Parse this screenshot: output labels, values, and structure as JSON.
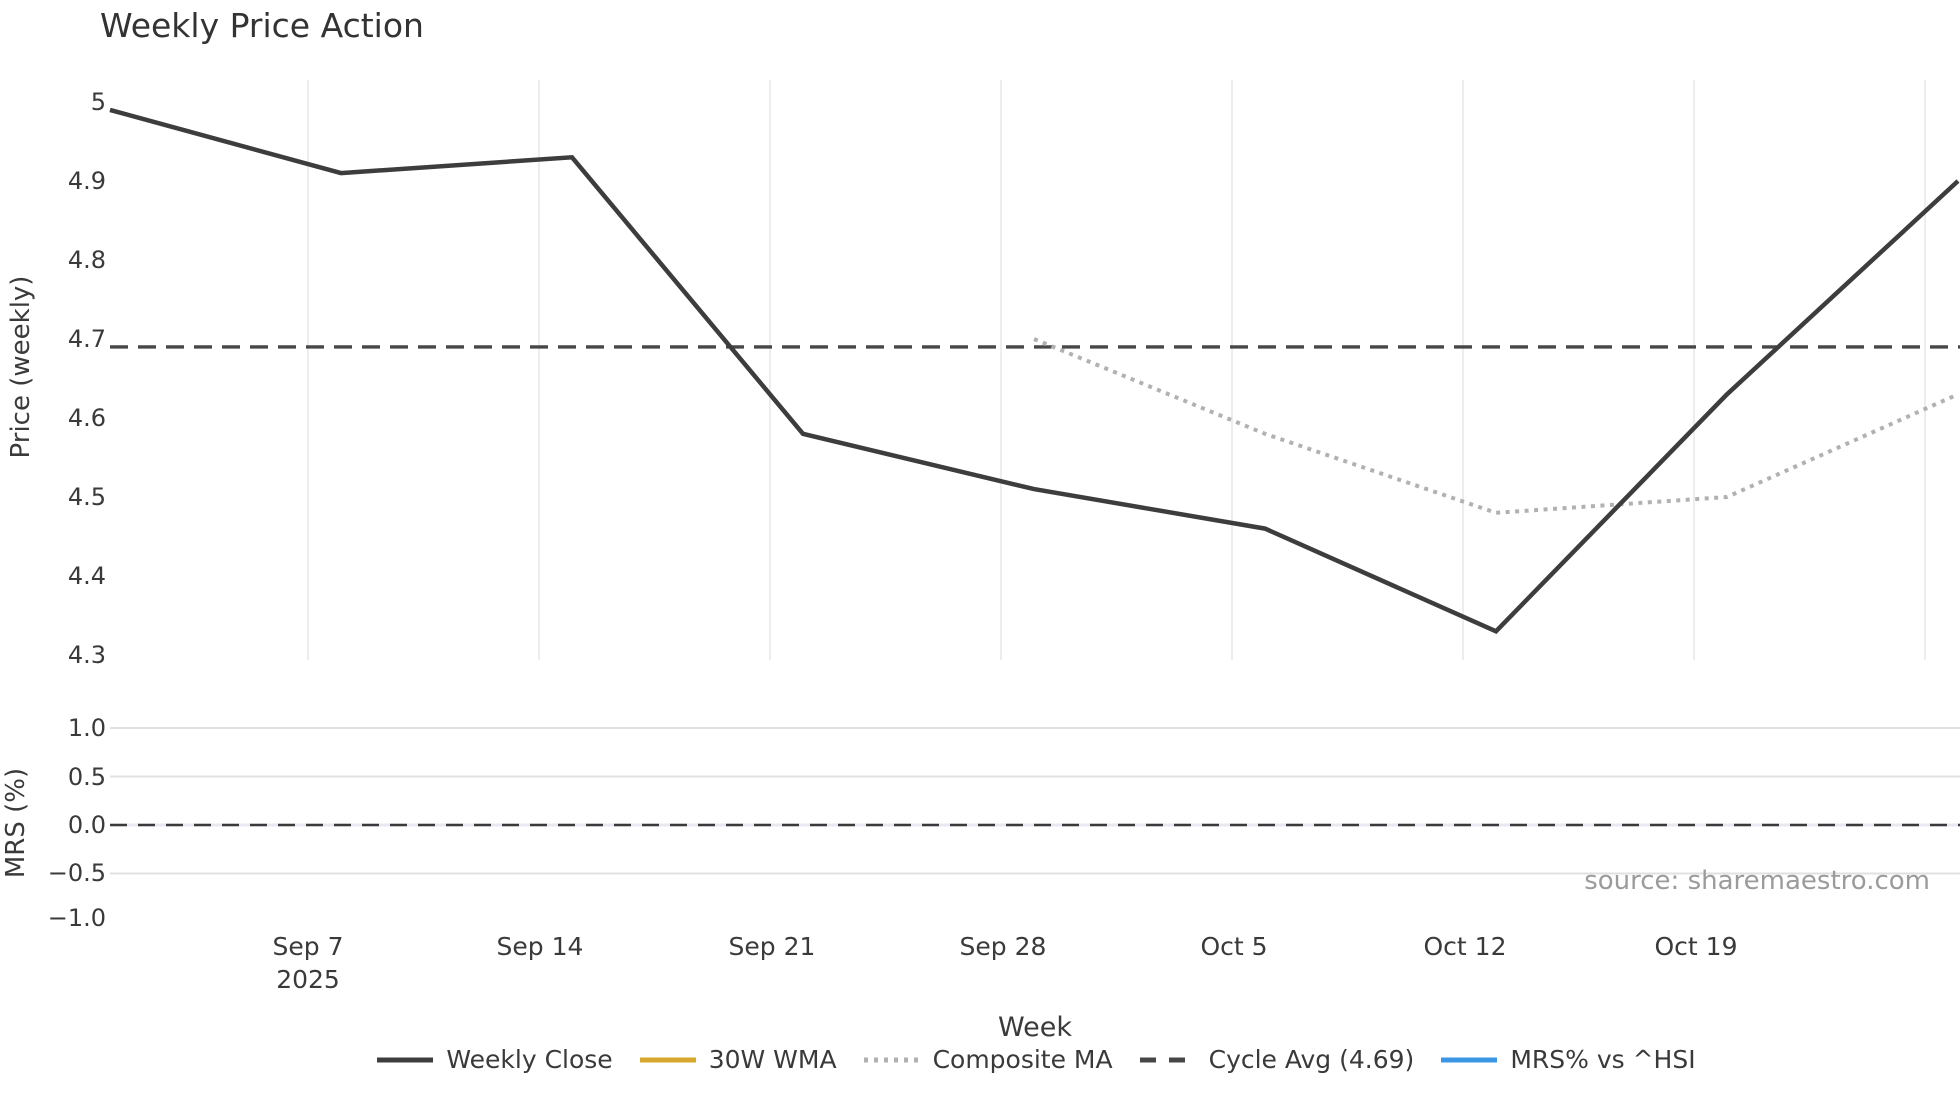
{
  "title": "Weekly Price Action",
  "source_note": "source: sharemaestro.com",
  "colors": {
    "weekly_close": "#3d3d3d",
    "wma_30w": "#d7a72e",
    "composite_ma": "#b1b1b1",
    "cycle_avg": "#474747",
    "mrs_line": "#3b97e3",
    "grid_vertical": "#ededed",
    "grid_horizontal": "#e1e1e1",
    "zero_grid_pale": "#e7e9f3",
    "text": "#3a3a3a",
    "source_text": "#9b9b9b"
  },
  "price_axis": {
    "ylabel": "Price (weekly)",
    "ytick_labels": [
      "5",
      "4.9",
      "4.8",
      "4.7",
      "4.6",
      "4.5",
      "4.4",
      "4.3"
    ]
  },
  "mrs_axis": {
    "ylabel": "MRS (%)",
    "ytick_labels": [
      "1.0",
      "0.5",
      "0.0",
      "−0.5",
      "−1.0"
    ]
  },
  "x_axis": {
    "label": "Week",
    "tick_labels": [
      "Sep 7\n2025",
      "Sep 14",
      "Sep 21",
      "Sep 28",
      "Oct 5",
      "Oct 12",
      "Oct 19"
    ]
  },
  "legend": {
    "items": [
      {
        "label": "Weekly Close",
        "style": "solid",
        "color": "#3d3d3d"
      },
      {
        "label": "30W WMA",
        "style": "solid",
        "color": "#d7a72e"
      },
      {
        "label": "Composite MA",
        "style": "dotted",
        "color": "#b1b1b1"
      },
      {
        "label": "Cycle Avg (4.69)",
        "style": "dashed",
        "color": "#474747"
      },
      {
        "label": "MRS% vs ^HSI",
        "style": "solid",
        "color": "#3b97e3"
      }
    ]
  },
  "chart_data": [
    {
      "type": "line",
      "panel": "price",
      "title": "Weekly Price Action",
      "xlabel": "Week",
      "ylabel": "Price (weekly)",
      "x": [
        "Sep 1",
        "Sep 8",
        "Sep 15",
        "Sep 22",
        "Sep 29",
        "Oct 6",
        "Oct 13",
        "Oct 20",
        "Oct 27"
      ],
      "x_year": "2025",
      "ylim": [
        4.29,
        5.03
      ],
      "yticks": [
        5.0,
        4.9,
        4.8,
        4.7,
        4.6,
        4.5,
        4.4,
        4.3
      ],
      "grid": "vertical-only",
      "legend_position": "bottom",
      "series": [
        {
          "name": "Weekly Close",
          "values": [
            4.99,
            4.91,
            4.93,
            4.58,
            4.51,
            4.46,
            4.33,
            4.63,
            4.9
          ]
        },
        {
          "name": "30W WMA",
          "values": []
        },
        {
          "name": "Composite MA",
          "values": [
            null,
            null,
            null,
            null,
            4.7,
            4.58,
            4.48,
            4.5,
            4.63
          ]
        },
        {
          "name": "Cycle Avg",
          "constant": 4.69
        }
      ]
    },
    {
      "type": "line",
      "panel": "mrs",
      "ylabel": "MRS (%)",
      "x": [
        "Sep 1",
        "Sep 8",
        "Sep 15",
        "Sep 22",
        "Sep 29",
        "Oct 6",
        "Oct 13",
        "Oct 20",
        "Oct 27"
      ],
      "ylim": [
        -1.1,
        1.1
      ],
      "yticks": [
        1.0,
        0.5,
        0.0,
        -0.5,
        -1.0
      ],
      "grid": "horizontal-only",
      "series": [
        {
          "name": "MRS% vs ^HSI",
          "values": []
        },
        {
          "name": "Zero Line",
          "constant": 0.0
        }
      ]
    }
  ]
}
